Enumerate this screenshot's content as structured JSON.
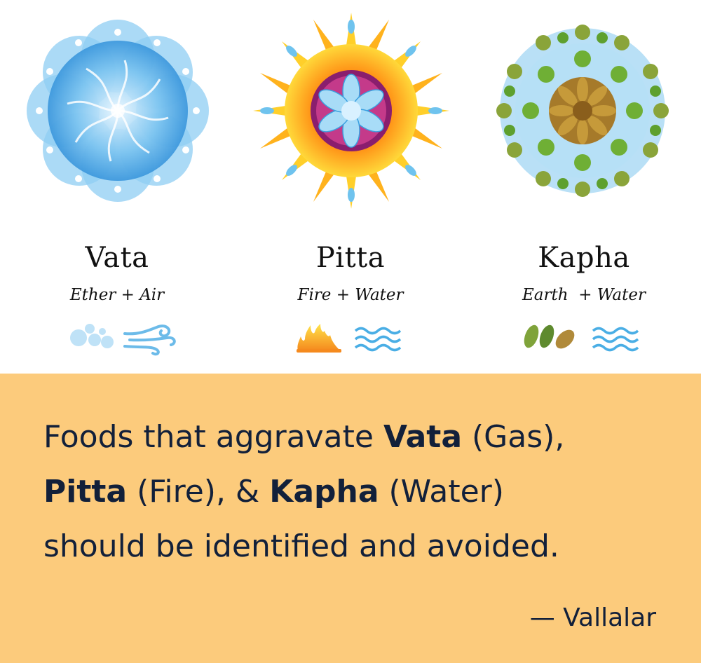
{
  "doshas": [
    {
      "name": "Vata",
      "elements": "Ether + Air",
      "mandala_icon": "air-swirl-mandala-icon",
      "symbols": [
        "ether-bubbles-icon",
        "air-wind-icon"
      ]
    },
    {
      "name": "Pitta",
      "elements": "Fire + Water",
      "mandala_icon": "fire-water-mandala-icon",
      "symbols": [
        "fire-icon",
        "water-waves-icon"
      ]
    },
    {
      "name": "Kapha",
      "elements": "Earth  + Water",
      "mandala_icon": "earth-leaf-mandala-icon",
      "symbols": [
        "earth-leaves-icon",
        "water-waves-icon"
      ]
    }
  ],
  "quote": {
    "part1": "Foods that aggravate ",
    "vata": "Vata",
    "part2": " (Gas),",
    "pitta": "Pitta",
    "part3": " (Fire), & ",
    "kapha": "Kapha",
    "part4": " (Water)",
    "part5": "should be identified and avoided."
  },
  "attribution": "— Vallalar",
  "colors": {
    "banner": "#fccb7c",
    "text": "#12203a",
    "vata_blue": "#5ab0e8",
    "fire_orange": "#f58a1e",
    "earth_green": "#7fa33a"
  }
}
